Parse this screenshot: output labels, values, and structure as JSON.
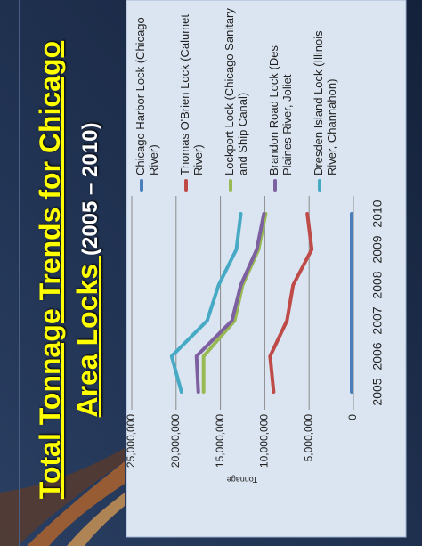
{
  "chart_data": {
    "type": "line",
    "title": "Total Tonnage Trends for Chicago Area Locks",
    "subtitle": "(2005 – 2010)",
    "y_label": "Tonnage",
    "categories": [
      "2005",
      "2006",
      "2007",
      "2008",
      "2009",
      "2010"
    ],
    "series": [
      {
        "name": "Chicago Harbor Lock (Chicago River)",
        "color": "#4a7ebb",
        "values": [
          200000,
          200000,
          200000,
          200000,
          200000,
          200000
        ]
      },
      {
        "name": "Thomas O'Brien Lock (Calumet River)",
        "color": "#be4b48",
        "values": [
          9000000,
          9400000,
          7500000,
          6800000,
          4700000,
          5200000
        ]
      },
      {
        "name": "Lockport Lock (Chicago Sanitary and Ship Canal)",
        "color": "#98b954",
        "values": [
          16900000,
          16900000,
          13400000,
          12500000,
          10700000,
          9900000
        ]
      },
      {
        "name": "Brandon Road Lock (Des Plaines River, Joliet",
        "color": "#7d60a0",
        "values": [
          17500000,
          17700000,
          13700000,
          12700000,
          10900000,
          10100000
        ]
      },
      {
        "name": "Dresden Island Lock (Illinois River, Channahon)",
        "color": "#46aac5",
        "values": [
          19400000,
          20500000,
          16500000,
          15200000,
          13200000,
          12700000
        ]
      }
    ],
    "ylim": [
      0,
      25000000
    ],
    "yticks": [
      {
        "value": 0,
        "label": "0"
      },
      {
        "value": 5000000,
        "label": "5,000,000"
      },
      {
        "value": 10000000,
        "label": "10,000,000"
      },
      {
        "value": 15000000,
        "label": "15,000,000"
      },
      {
        "value": 20000000,
        "label": "20,000,000"
      },
      {
        "value": 25000000,
        "label": "25,000,000"
      }
    ],
    "grid": true
  }
}
